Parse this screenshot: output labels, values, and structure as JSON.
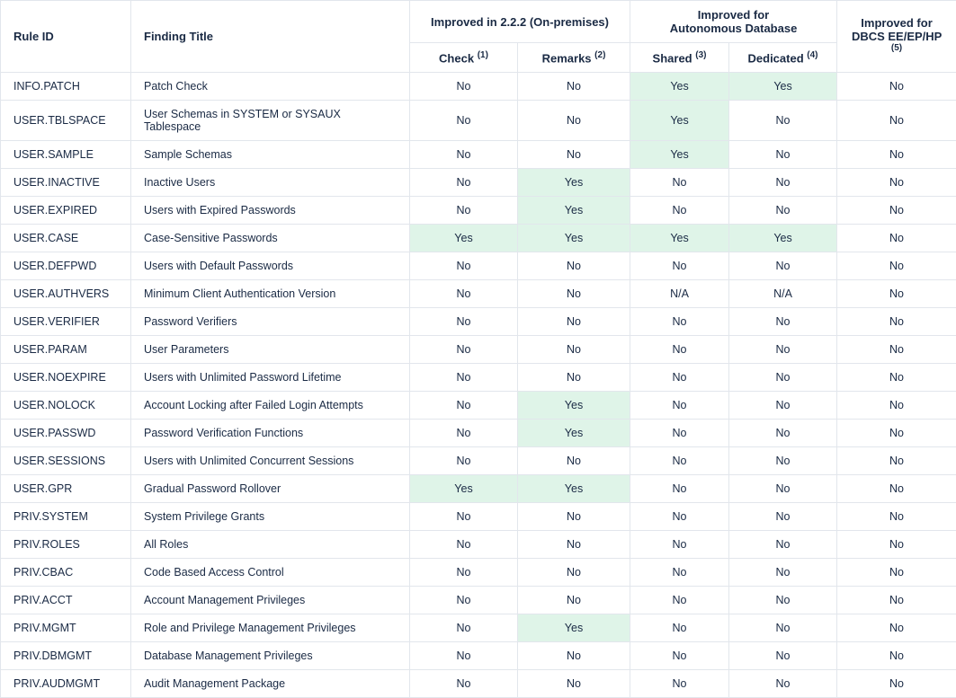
{
  "table": {
    "header": {
      "rule_id": "Rule ID",
      "finding_title": "Finding Title",
      "group_onprem": "Improved in 2.2.2 (On-premises)",
      "group_adb_l1": "Improved for",
      "group_adb_l2": "Autonomous Database",
      "col_check": "Check",
      "col_check_sup": "(1)",
      "col_remarks": "Remarks",
      "col_remarks_sup": "(2)",
      "col_shared": "Shared",
      "col_shared_sup": "(3)",
      "col_dedicated": "Dedicated",
      "col_dedicated_sup": "(4)",
      "col_dbcs_l1": "Improved for",
      "col_dbcs_l2": "DBCS EE/EP/HP",
      "col_dbcs_sup": "(5)"
    },
    "highlight_color": "#dff4e8",
    "rows": [
      {
        "rule_id": "INFO.PATCH",
        "title": "Patch Check",
        "check": "No",
        "remarks": "No",
        "shared": "Yes",
        "dedicated": "Yes",
        "dbcs": "No"
      },
      {
        "rule_id": "USER.TBLSPACE",
        "title": "User Schemas in SYSTEM or SYSAUX Tablespace",
        "check": "No",
        "remarks": "No",
        "shared": "Yes",
        "dedicated": "No",
        "dbcs": "No"
      },
      {
        "rule_id": "USER.SAMPLE",
        "title": "Sample Schemas",
        "check": "No",
        "remarks": "No",
        "shared": "Yes",
        "dedicated": "No",
        "dbcs": "No"
      },
      {
        "rule_id": "USER.INACTIVE",
        "title": "Inactive Users",
        "check": "No",
        "remarks": "Yes",
        "shared": "No",
        "dedicated": "No",
        "dbcs": "No"
      },
      {
        "rule_id": "USER.EXPIRED",
        "title": "Users with Expired Passwords",
        "check": "No",
        "remarks": "Yes",
        "shared": "No",
        "dedicated": "No",
        "dbcs": "No"
      },
      {
        "rule_id": "USER.CASE",
        "title": "Case-Sensitive Passwords",
        "check": "Yes",
        "remarks": "Yes",
        "shared": "Yes",
        "dedicated": "Yes",
        "dbcs": "No"
      },
      {
        "rule_id": "USER.DEFPWD",
        "title": "Users with Default Passwords",
        "check": "No",
        "remarks": "No",
        "shared": "No",
        "dedicated": "No",
        "dbcs": "No"
      },
      {
        "rule_id": "USER.AUTHVERS",
        "title": "Minimum Client Authentication Version",
        "check": "No",
        "remarks": "No",
        "shared": "N/A",
        "dedicated": "N/A",
        "dbcs": "No"
      },
      {
        "rule_id": "USER.VERIFIER",
        "title": "Password Verifiers",
        "check": "No",
        "remarks": "No",
        "shared": "No",
        "dedicated": "No",
        "dbcs": "No"
      },
      {
        "rule_id": "USER.PARAM",
        "title": "User Parameters",
        "check": "No",
        "remarks": "No",
        "shared": "No",
        "dedicated": "No",
        "dbcs": "No"
      },
      {
        "rule_id": "USER.NOEXPIRE",
        "title": "Users with Unlimited Password Lifetime",
        "check": "No",
        "remarks": "No",
        "shared": "No",
        "dedicated": "No",
        "dbcs": "No"
      },
      {
        "rule_id": "USER.NOLOCK",
        "title": "Account Locking after Failed Login Attempts",
        "check": "No",
        "remarks": "Yes",
        "shared": "No",
        "dedicated": "No",
        "dbcs": "No"
      },
      {
        "rule_id": "USER.PASSWD",
        "title": "Password Verification Functions",
        "check": "No",
        "remarks": "Yes",
        "shared": "No",
        "dedicated": "No",
        "dbcs": "No"
      },
      {
        "rule_id": "USER.SESSIONS",
        "title": "Users with Unlimited Concurrent Sessions",
        "check": "No",
        "remarks": "No",
        "shared": "No",
        "dedicated": "No",
        "dbcs": "No"
      },
      {
        "rule_id": "USER.GPR",
        "title": "Gradual Password Rollover",
        "check": "Yes",
        "remarks": "Yes",
        "shared": "No",
        "dedicated": "No",
        "dbcs": "No"
      },
      {
        "rule_id": "PRIV.SYSTEM",
        "title": "System Privilege Grants",
        "check": "No",
        "remarks": "No",
        "shared": "No",
        "dedicated": "No",
        "dbcs": "No"
      },
      {
        "rule_id": "PRIV.ROLES",
        "title": "All Roles",
        "check": "No",
        "remarks": "No",
        "shared": "No",
        "dedicated": "No",
        "dbcs": "No"
      },
      {
        "rule_id": "PRIV.CBAC",
        "title": "Code Based Access Control",
        "check": "No",
        "remarks": "No",
        "shared": "No",
        "dedicated": "No",
        "dbcs": "No"
      },
      {
        "rule_id": "PRIV.ACCT",
        "title": "Account Management Privileges",
        "check": "No",
        "remarks": "No",
        "shared": "No",
        "dedicated": "No",
        "dbcs": "No"
      },
      {
        "rule_id": "PRIV.MGMT",
        "title": "Role and Privilege Management Privileges",
        "check": "No",
        "remarks": "Yes",
        "shared": "No",
        "dedicated": "No",
        "dbcs": "No"
      },
      {
        "rule_id": "PRIV.DBMGMT",
        "title": "Database Management Privileges",
        "check": "No",
        "remarks": "No",
        "shared": "No",
        "dedicated": "No",
        "dbcs": "No"
      },
      {
        "rule_id": "PRIV.AUDMGMT",
        "title": "Audit Management Package",
        "check": "No",
        "remarks": "No",
        "shared": "No",
        "dedicated": "No",
        "dbcs": "No"
      }
    ]
  }
}
